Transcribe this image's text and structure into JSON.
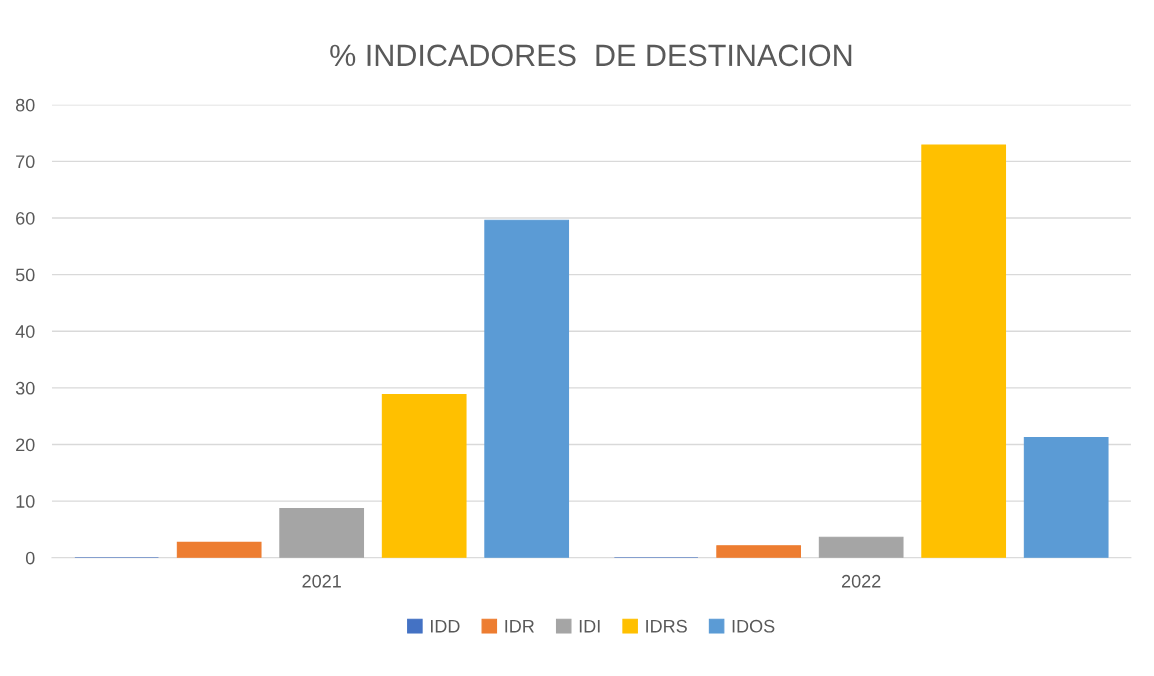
{
  "chart_data": {
    "type": "bar",
    "title": "% INDICADORES  DE DESTINACION",
    "categories": [
      "2021",
      "2022"
    ],
    "series": [
      {
        "name": "IDD",
        "color": "#4472c4",
        "values": [
          0,
          0
        ]
      },
      {
        "name": "IDR",
        "color": "#ed7d31",
        "values": [
          2.7,
          2.1
        ]
      },
      {
        "name": "IDI",
        "color": "#a5a5a5",
        "values": [
          8.7,
          3.6
        ]
      },
      {
        "name": "IDRS",
        "color": "#ffc000",
        "values": [
          28.8,
          72.9
        ]
      },
      {
        "name": "IDOS",
        "color": "#5b9bd5",
        "values": [
          59.6,
          21.2
        ]
      }
    ],
    "ylim": [
      0,
      80
    ],
    "yticks": [
      0,
      10,
      20,
      30,
      40,
      50,
      60,
      70,
      80
    ],
    "grid": "y",
    "legend": "bottom"
  }
}
